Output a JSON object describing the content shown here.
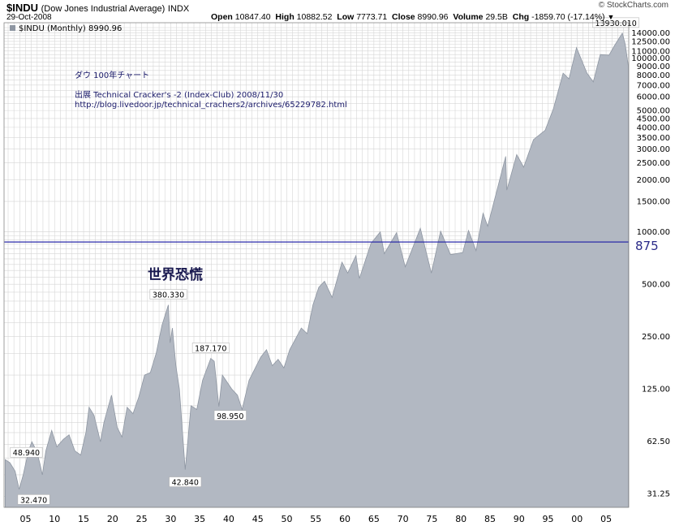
{
  "header": {
    "ticker": "$INDU",
    "name": "(Dow Jones Industrial Average)",
    "exchange": "INDX",
    "date": "29-Oct-2008",
    "open_label": "Open",
    "open": "10847.40",
    "high_label": "High",
    "high": "10882.52",
    "low_label": "Low",
    "low": "7773.71",
    "close_label": "Close",
    "close": "8990.96",
    "volume_label": "Volume",
    "volume": "29.5B",
    "chg_label": "Chg",
    "chg": "-1859.70 (-17.14%)",
    "brand": "© StockCharts.com"
  },
  "legend_label": "$INDU (Monthly) 8990.96",
  "annotations": {
    "title_jp": "ダウ 100年チャート",
    "source_line": "出展 Technical Cracker's -2 (Index-Club) 2008/11/30",
    "url": "http://blog.livedoor.jp/technical_crachers2/archives/65229782.html",
    "depression": "世界恐慌",
    "line_875": "875"
  },
  "colors": {
    "area_fill": "#b2b8c2",
    "area_edge": "#8e96a2",
    "grid": "#d6d6d6",
    "hline": "#2a2aa8",
    "label_875": "#2a2a88",
    "chart_border": "#888888"
  },
  "chart_data": {
    "type": "area",
    "title": "$INDU (Monthly) 8990.96",
    "xlabel": "",
    "ylabel": "",
    "y_scale": "log",
    "ylim": [
      26,
      16000
    ],
    "xlim": [
      1901.3,
      2008.9
    ],
    "x_tick_labels": [
      "05",
      "10",
      "15",
      "20",
      "25",
      "30",
      "35",
      "40",
      "45",
      "50",
      "55",
      "60",
      "65",
      "70",
      "75",
      "80",
      "85",
      "90",
      "95",
      "00",
      "05"
    ],
    "x_tick_years": [
      1905,
      1910,
      1915,
      1920,
      1925,
      1930,
      1935,
      1940,
      1945,
      1950,
      1955,
      1960,
      1965,
      1970,
      1975,
      1980,
      1985,
      1990,
      1995,
      2000,
      2005
    ],
    "y_ticks": [
      31.25,
      62.5,
      125.0,
      250.0,
      500.0,
      1000.0,
      1500.0,
      2000.0,
      2500.0,
      3000.0,
      3500.0,
      4000.0,
      4500.0,
      5000.0,
      6000.0,
      7000.0,
      8000.0,
      9000.0,
      10000.0,
      11000.0,
      12500.0,
      14000.0
    ],
    "y_tick_labels": [
      "31.25",
      "62.50",
      "125.00",
      "250.00",
      "500.00",
      "1000.00",
      "1500.00",
      "2000.00",
      "2500.00",
      "3000.00",
      "3500.00",
      "4000.00",
      "4500.00",
      "5000.00",
      "6000.00",
      "7000.00",
      "8000.00",
      "9000.00",
      "10000.00",
      "11000.00",
      "12500.00",
      "14000.00"
    ],
    "horizontal_line": {
      "value": 875,
      "label": "875"
    },
    "points": [
      [
        1901.5,
        48.94
      ],
      [
        1902.3,
        47
      ],
      [
        1903.2,
        42
      ],
      [
        1903.9,
        33
      ],
      [
        1904.6,
        40
      ],
      [
        1905.5,
        55
      ],
      [
        1906.1,
        62
      ],
      [
        1906.9,
        55
      ],
      [
        1907.5,
        46
      ],
      [
        1907.9,
        40
      ],
      [
        1908.5,
        55
      ],
      [
        1909.5,
        72
      ],
      [
        1910.4,
        58
      ],
      [
        1911.5,
        64
      ],
      [
        1912.5,
        68
      ],
      [
        1913.5,
        55
      ],
      [
        1914.5,
        52
      ],
      [
        1915.4,
        70
      ],
      [
        1915.95,
        98
      ],
      [
        1916.8,
        88
      ],
      [
        1917.9,
        62
      ],
      [
        1918.5,
        80
      ],
      [
        1919.8,
        115
      ],
      [
        1920.8,
        75
      ],
      [
        1921.6,
        66
      ],
      [
        1922.5,
        98
      ],
      [
        1923.5,
        90
      ],
      [
        1924.5,
        112
      ],
      [
        1925.5,
        150
      ],
      [
        1926.5,
        155
      ],
      [
        1927.5,
        200
      ],
      [
        1928.5,
        290
      ],
      [
        1929.6,
        380.33
      ],
      [
        1929.9,
        230
      ],
      [
        1930.3,
        280
      ],
      [
        1930.9,
        170
      ],
      [
        1931.5,
        125
      ],
      [
        1932.5,
        42.84
      ],
      [
        1933.5,
        100
      ],
      [
        1934.5,
        95
      ],
      [
        1935.5,
        140
      ],
      [
        1936.9,
        187.17
      ],
      [
        1937.5,
        180
      ],
      [
        1938.3,
        98.95
      ],
      [
        1938.9,
        150
      ],
      [
        1940.5,
        125
      ],
      [
        1941.5,
        115
      ],
      [
        1942.3,
        95
      ],
      [
        1943.5,
        140
      ],
      [
        1945.5,
        190
      ],
      [
        1946.5,
        210
      ],
      [
        1947.5,
        170
      ],
      [
        1948.5,
        185
      ],
      [
        1949.5,
        165
      ],
      [
        1950.5,
        210
      ],
      [
        1952.5,
        280
      ],
      [
        1953.5,
        260
      ],
      [
        1954.5,
        380
      ],
      [
        1955.5,
        480
      ],
      [
        1956.5,
        520
      ],
      [
        1957.8,
        420
      ],
      [
        1959.5,
        670
      ],
      [
        1960.5,
        580
      ],
      [
        1961.9,
        730
      ],
      [
        1962.5,
        540
      ],
      [
        1964.5,
        860
      ],
      [
        1966.1,
        1000
      ],
      [
        1966.8,
        750
      ],
      [
        1968.9,
        990
      ],
      [
        1970.4,
        630
      ],
      [
        1973.0,
        1050
      ],
      [
        1974.9,
        580
      ],
      [
        1976.5,
        1010
      ],
      [
        1978.2,
        740
      ],
      [
        1980.3,
        760
      ],
      [
        1981.3,
        1020
      ],
      [
        1982.6,
        780
      ],
      [
        1983.8,
        1280
      ],
      [
        1984.6,
        1080
      ],
      [
        1986.5,
        1900
      ],
      [
        1987.7,
        2720
      ],
      [
        1987.9,
        1740
      ],
      [
        1989.6,
        2790
      ],
      [
        1990.8,
        2360
      ],
      [
        1992.5,
        3400
      ],
      [
        1994.5,
        3850
      ],
      [
        1995.9,
        5100
      ],
      [
        1997.6,
        8200
      ],
      [
        1998.6,
        7600
      ],
      [
        1999.9,
        11500
      ],
      [
        2001.7,
        8200
      ],
      [
        2002.8,
        7300
      ],
      [
        2004.0,
        10500
      ],
      [
        2005.5,
        10400
      ],
      [
        2006.5,
        11900
      ],
      [
        2007.8,
        13930.01
      ],
      [
        2008.3,
        12000
      ],
      [
        2008.83,
        8990.96
      ]
    ],
    "data_labels": [
      {
        "x": 1901.5,
        "y": 48.94,
        "text": "48.940"
      },
      {
        "x": 1903.9,
        "y": 32.47,
        "text": "32.470"
      },
      {
        "x": 1929.6,
        "y": 380.33,
        "text": "380.330"
      },
      {
        "x": 1936.9,
        "y": 187.17,
        "text": "187.170"
      },
      {
        "x": 1938.3,
        "y": 98.95,
        "text": "98.950"
      },
      {
        "x": 1932.5,
        "y": 42.84,
        "text": "42.840"
      },
      {
        "x": 2007.8,
        "y": 13930.01,
        "text": "13930.010"
      }
    ],
    "grid": true,
    "legend": "top-left"
  }
}
